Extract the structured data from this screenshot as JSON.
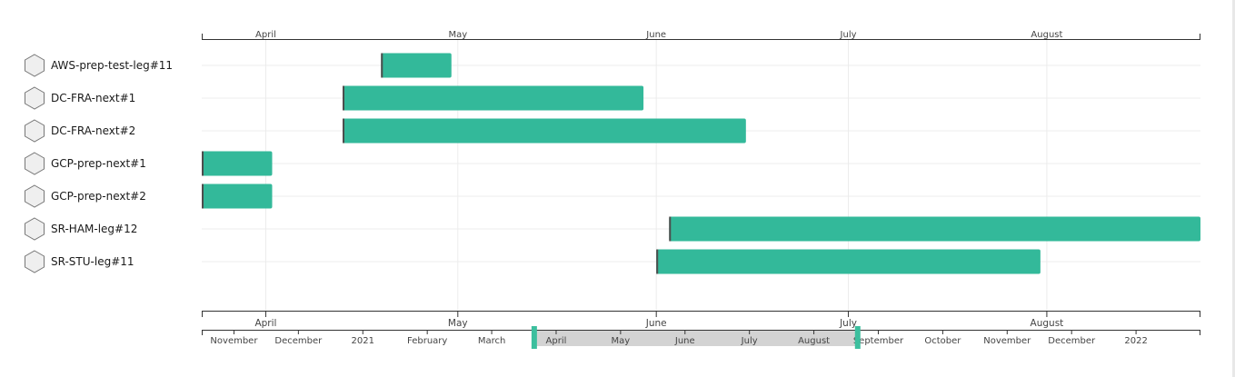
{
  "groups": [
    {
      "label": "AWS-prep-test-leg#11",
      "icon": "hexagon-icon"
    },
    {
      "label": "DC-FRA-next#1",
      "icon": "hexagon-icon"
    },
    {
      "label": "DC-FRA-next#2",
      "icon": "hexagon-icon"
    },
    {
      "label": "GCP-prep-next#1",
      "icon": "hexagon-icon"
    },
    {
      "label": "GCP-prep-next#2",
      "icon": "hexagon-icon"
    },
    {
      "label": "SR-HAM-leg#12",
      "icon": "hexagon-icon"
    },
    {
      "label": "SR-STU-leg#11",
      "icon": "hexagon-icon"
    }
  ],
  "top_axis": {
    "months": [
      {
        "label": "April",
        "value": 0.0
      },
      {
        "label": "May",
        "value": 30.0
      },
      {
        "label": "June",
        "value": 61.0
      },
      {
        "label": "July",
        "value": 91.0
      },
      {
        "label": "August",
        "value": 122.0
      }
    ],
    "domain": [
      -10,
      146
    ]
  },
  "bars": [
    {
      "group": 0,
      "start": 18,
      "end": 29
    },
    {
      "group": 1,
      "start": 12,
      "end": 59
    },
    {
      "group": 2,
      "start": 12,
      "end": 75
    },
    {
      "group": 3,
      "start": -10,
      "end": 1
    },
    {
      "group": 4,
      "start": -10,
      "end": 1
    },
    {
      "group": 5,
      "start": 63,
      "end": 146
    },
    {
      "group": 6,
      "start": 61,
      "end": 121
    }
  ],
  "bottom_axis": {
    "months": [
      {
        "label": "April",
        "value": 0.0
      },
      {
        "label": "May",
        "value": 30.0
      },
      {
        "label": "June",
        "value": 61.0
      },
      {
        "label": "July",
        "value": 91.0
      },
      {
        "label": "August",
        "value": 122.0
      }
    ],
    "domain": [
      -10,
      146
    ]
  },
  "overview": {
    "months": [
      {
        "label": "November",
        "value": 1
      },
      {
        "label": "December",
        "value": 2
      },
      {
        "label": "2021",
        "value": 3
      },
      {
        "label": "February",
        "value": 4
      },
      {
        "label": "March",
        "value": 5
      },
      {
        "label": "April",
        "value": 6
      },
      {
        "label": "May",
        "value": 7
      },
      {
        "label": "June",
        "value": 8
      },
      {
        "label": "July",
        "value": 9
      },
      {
        "label": "August",
        "value": 10
      },
      {
        "label": "September",
        "value": 11
      },
      {
        "label": "October",
        "value": 12
      },
      {
        "label": "November",
        "value": 13
      },
      {
        "label": "December",
        "value": 14
      },
      {
        "label": "2022",
        "value": 15
      }
    ],
    "domain": [
      0.5,
      16.0
    ],
    "brush": [
      5.66,
      10.68
    ]
  },
  "colors": {
    "bar": "#33b99a",
    "bar_start_marker": "#4d4d4d",
    "brush": "#d3d3d3",
    "brush_handle": "#3cbf9e",
    "grid": "#ececec",
    "axis": "#333333",
    "icon_fill": "#efefef",
    "icon_stroke": "#777777"
  }
}
